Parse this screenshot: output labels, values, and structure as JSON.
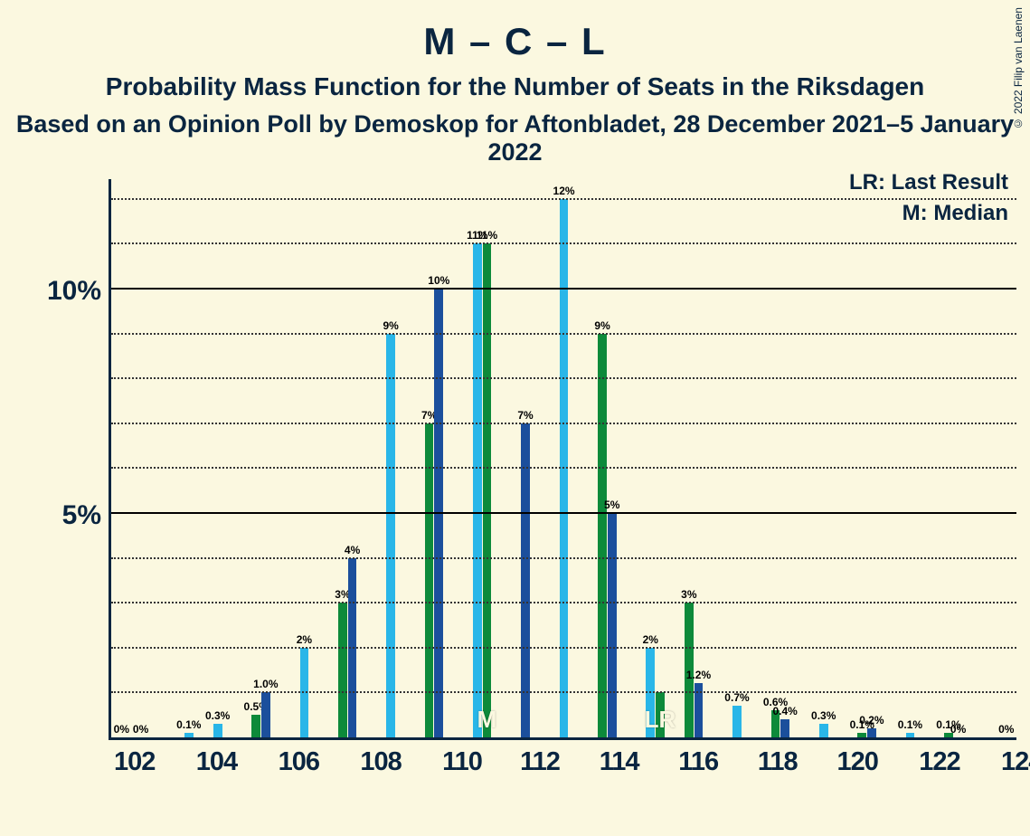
{
  "titles": {
    "line1": "M – C – L",
    "line2": "Probability Mass Function for the Number of Seats in the Riksdagen",
    "line3": "Based on an Opinion Poll by Demoskop for Aftonbladet, 28 December 2021–5 January 2022"
  },
  "legend": {
    "lr": "LR: Last Result",
    "m": "M: Median"
  },
  "copyright": "© 2022 Filip van Laenen",
  "chart": {
    "type": "bar",
    "background_color": "#fbf8e0",
    "axis_color": "#0a2540",
    "grid_color": "#333333",
    "bar_colors": [
      "#1b4f9c",
      "#29b6e8",
      "#0d8a3a"
    ],
    "title_fontsize": 42,
    "subtitle_fontsize": 28,
    "label_fontsize": 12,
    "xtick_fontsize": 29,
    "ytick_fontsize": 30,
    "ylim": [
      0,
      12.5
    ],
    "yticks_major": [
      5,
      10
    ],
    "yticks_minor": [
      1,
      2,
      3,
      4,
      6,
      7,
      8,
      9,
      11,
      12
    ],
    "ytick_labels": {
      "5": "5%",
      "10": "10%"
    },
    "x_start": 102,
    "x_end": 132,
    "xtick_step_label": 2,
    "median_marker": {
      "text": "M",
      "group_x": 114,
      "bar_index": 2
    },
    "lr_marker": {
      "text": "LR",
      "group_x": 120,
      "bar_index": 2
    },
    "groups": [
      {
        "x": 102,
        "v": [
          0,
          0,
          0
        ],
        "l": [
          "0%",
          "",
          "0%"
        ]
      },
      {
        "x": 103,
        "v": [
          0,
          0,
          0
        ],
        "l": [
          "",
          "",
          ""
        ]
      },
      {
        "x": 104,
        "v": [
          0,
          0.1,
          0
        ],
        "l": [
          "",
          "0.1%",
          ""
        ]
      },
      {
        "x": 105,
        "v": [
          0,
          0.3,
          0
        ],
        "l": [
          "",
          "0.3%",
          ""
        ]
      },
      {
        "x": 106,
        "v": [
          0,
          0,
          0.5
        ],
        "l": [
          "",
          "",
          "0.5%"
        ]
      },
      {
        "x": 107,
        "v": [
          1.0,
          0,
          0
        ],
        "l": [
          "1.0%",
          "",
          ""
        ]
      },
      {
        "x": 108,
        "v": [
          0,
          2,
          0
        ],
        "l": [
          "",
          "2%",
          ""
        ]
      },
      {
        "x": 109,
        "v": [
          0,
          0,
          3
        ],
        "l": [
          "",
          "",
          "3%"
        ]
      },
      {
        "x": 110,
        "v": [
          4,
          0,
          0
        ],
        "l": [
          "4%",
          "",
          ""
        ]
      },
      {
        "x": 111,
        "v": [
          0,
          9,
          0
        ],
        "l": [
          "",
          "9%",
          ""
        ]
      },
      {
        "x": 112,
        "v": [
          0,
          0,
          7
        ],
        "l": [
          "",
          "",
          "7%"
        ]
      },
      {
        "x": 113,
        "v": [
          10,
          0,
          0
        ],
        "l": [
          "10%",
          "",
          ""
        ]
      },
      {
        "x": 114,
        "v": [
          0,
          11,
          11
        ],
        "l": [
          "",
          "11%",
          "11%"
        ]
      },
      {
        "x": 115,
        "v": [
          0,
          0,
          0
        ],
        "l": [
          "",
          "",
          ""
        ]
      },
      {
        "x": 116,
        "v": [
          7,
          0,
          0
        ],
        "l": [
          "7%",
          "",
          ""
        ]
      },
      {
        "x": 117,
        "v": [
          0,
          12,
          0
        ],
        "l": [
          "",
          "12%",
          ""
        ]
      },
      {
        "x": 118,
        "v": [
          0,
          0,
          9
        ],
        "l": [
          "",
          "",
          "9%"
        ]
      },
      {
        "x": 119,
        "v": [
          5,
          0,
          0
        ],
        "l": [
          "5%",
          "",
          ""
        ]
      },
      {
        "x": 120,
        "v": [
          0,
          2,
          1.0
        ],
        "l": [
          "",
          "2%",
          ""
        ]
      },
      {
        "x": 121,
        "v": [
          0,
          0,
          3
        ],
        "l": [
          "",
          "",
          "3%"
        ]
      },
      {
        "x": 122,
        "v": [
          1.2,
          0,
          0
        ],
        "l": [
          "1.2%",
          "",
          ""
        ]
      },
      {
        "x": 123,
        "v": [
          0,
          0.7,
          0
        ],
        "l": [
          "",
          "0.7%",
          ""
        ]
      },
      {
        "x": 124,
        "v": [
          0,
          0,
          0.6
        ],
        "l": [
          "",
          "",
          "0.6%"
        ]
      },
      {
        "x": 125,
        "v": [
          0.4,
          0,
          0
        ],
        "l": [
          "0.4%",
          "",
          ""
        ]
      },
      {
        "x": 126,
        "v": [
          0,
          0.3,
          0
        ],
        "l": [
          "",
          "0.3%",
          ""
        ]
      },
      {
        "x": 127,
        "v": [
          0,
          0,
          0.1
        ],
        "l": [
          "",
          "",
          "0.1%"
        ]
      },
      {
        "x": 128,
        "v": [
          0.2,
          0,
          0
        ],
        "l": [
          "0.2%",
          "",
          ""
        ]
      },
      {
        "x": 129,
        "v": [
          0,
          0.1,
          0
        ],
        "l": [
          "",
          "0.1%",
          ""
        ]
      },
      {
        "x": 130,
        "v": [
          0,
          0,
          0.1
        ],
        "l": [
          "",
          "",
          "0.1%"
        ]
      },
      {
        "x": 131,
        "v": [
          0,
          0,
          0
        ],
        "l": [
          "0%",
          "",
          ""
        ]
      },
      {
        "x": 132,
        "v": [
          0,
          0,
          0
        ],
        "l": [
          "",
          "",
          "0%"
        ]
      }
    ]
  }
}
